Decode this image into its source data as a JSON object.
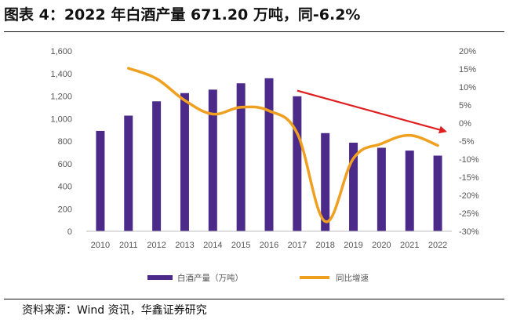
{
  "title": "图表 4：2022 年白酒产量 671.20 万吨，同-6.2%",
  "source": "资料来源：Wind 资讯，华鑫证券研究",
  "chart_data": {
    "type": "bar",
    "categories": [
      "2010",
      "2011",
      "2012",
      "2013",
      "2014",
      "2015",
      "2016",
      "2017",
      "2018",
      "2019",
      "2020",
      "2021",
      "2022"
    ],
    "series": [
      {
        "name": "白酒产量（万吨）",
        "type": "bar",
        "axis": "left",
        "values": [
          891,
          1026,
          1153,
          1226,
          1257,
          1313,
          1358,
          1198,
          871,
          786,
          741,
          716,
          671.2
        ]
      },
      {
        "name": "同比增速",
        "type": "line",
        "axis": "right",
        "unit": "%",
        "values": [
          null,
          15.2,
          12.3,
          6.3,
          2.5,
          4.4,
          3.4,
          -2.8,
          -27.3,
          -9.8,
          -5.7,
          -3.4,
          -6.2
        ]
      }
    ],
    "y_left": {
      "min": 0,
      "max": 1600,
      "ticks": [
        "0",
        "200",
        "400",
        "600",
        "800",
        "1,000",
        "1,200",
        "1,400",
        "1,600"
      ]
    },
    "y_right": {
      "min": -30,
      "max": 20,
      "ticks": [
        "-30%",
        "-25%",
        "-20%",
        "-15%",
        "-10%",
        "-5%",
        "0%",
        "5%",
        "10%",
        "15%",
        "20%"
      ]
    },
    "grid": false,
    "legend_position": "bottom",
    "annotation": "red arrow indicating downward trend from 2017 to 2022",
    "colors": {
      "bar": "#4b2a8a",
      "line": "#f0a020",
      "arrow": "#e02020"
    }
  }
}
